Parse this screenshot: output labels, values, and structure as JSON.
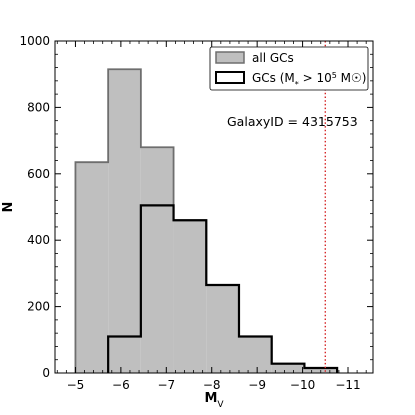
{
  "chart_data": {
    "type": "histogram",
    "xlabel": "M",
    "xlabel_sub": "V",
    "ylabel": "N",
    "xlim": [
      -4.55,
      -11.55
    ],
    "ylim": [
      0,
      1000
    ],
    "x_inverted": true,
    "x_ticks": [
      -5,
      -6,
      -7,
      -8,
      -9,
      -10,
      -11
    ],
    "x_tick_labels": [
      "−5",
      "−6",
      "−7",
      "−8",
      "−9",
      "−10",
      "−11"
    ],
    "y_ticks": [
      0,
      200,
      400,
      600,
      800,
      1000
    ],
    "y_tick_labels": [
      "0",
      "200",
      "400",
      "600",
      "800",
      "1000"
    ],
    "bin_edges": [
      -5.0,
      -5.72,
      -6.44,
      -7.16,
      -7.88,
      -8.6,
      -9.32,
      -10.04,
      -10.76
    ],
    "series": [
      {
        "name": "all GCs",
        "style": "filled",
        "fill": "#bfbfbf",
        "edge": "#6e6e6e",
        "values": [
          635,
          915,
          680,
          460,
          265,
          110,
          28,
          15
        ]
      },
      {
        "name": "GCs (M* > 10^5 M☉)",
        "style": "step",
        "edge": "#000000",
        "values": [
          0,
          110,
          505,
          460,
          265,
          110,
          28,
          15
        ]
      }
    ],
    "vline": {
      "x": -10.5,
      "color": "#d62728",
      "style": "dotted"
    },
    "annotation": "GalaxyID = 4315753",
    "legend": {
      "placement": "top-right",
      "entries": [
        {
          "text": "all GCs"
        },
        {
          "text_main": "GCs (M",
          "sub": "*",
          "text_mid": " > 10",
          "sup": "5",
          "text_end": " M☉)"
        }
      ]
    },
    "grid": false
  }
}
